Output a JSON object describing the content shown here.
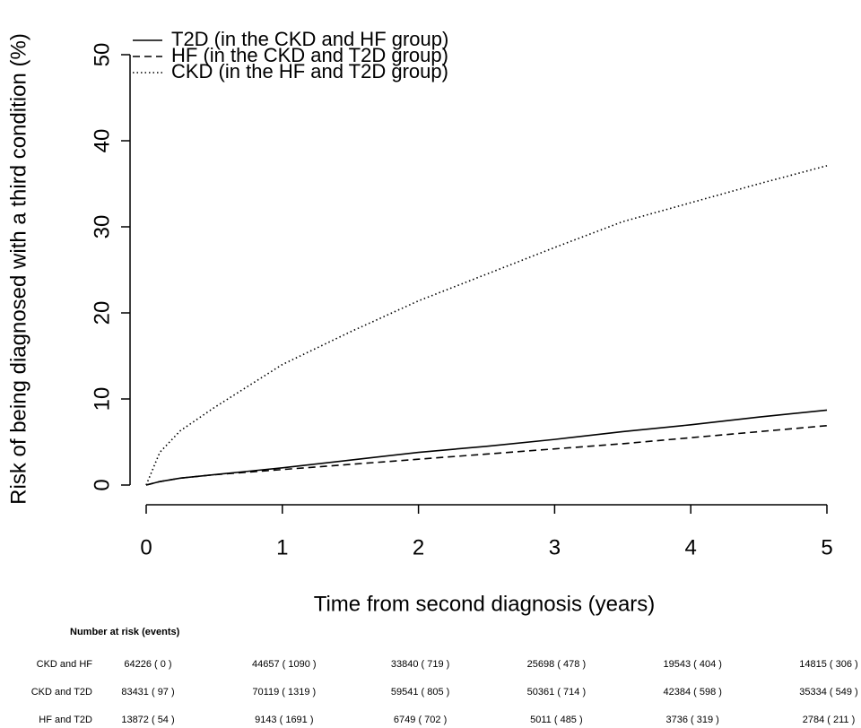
{
  "chart_data": {
    "type": "line",
    "xlabel": "Time from second diagnosis (years)",
    "ylabel": "Risk of being diagnosed with a third condition (%)",
    "x": [
      0,
      0.1,
      0.25,
      0.5,
      0.75,
      1,
      1.5,
      2,
      2.5,
      3,
      3.5,
      4,
      4.5,
      5
    ],
    "series": [
      {
        "name": "T2D (in the CKD and HF group)",
        "color": "#000000",
        "linestyle": "solid",
        "values": [
          0,
          0.4,
          0.8,
          1.2,
          1.6,
          2.0,
          2.9,
          3.8,
          4.5,
          5.3,
          6.2,
          7.0,
          7.9,
          8.7
        ]
      },
      {
        "name": "HF (in the CKD and T2D group)",
        "color": "#000000",
        "linestyle": "dashed",
        "values": [
          0,
          0.4,
          0.8,
          1.2,
          1.5,
          1.8,
          2.4,
          3.0,
          3.6,
          4.2,
          4.8,
          5.5,
          6.2,
          6.9
        ]
      },
      {
        "name": "CKD (in the HF and T2D group)",
        "color": "#000000",
        "linestyle": "dotted",
        "values": [
          0,
          3.8,
          6.3,
          9.0,
          11.5,
          14.0,
          17.8,
          21.4,
          24.5,
          27.6,
          30.6,
          32.8,
          35.0,
          37.1
        ]
      }
    ],
    "xlim": [
      0,
      5
    ],
    "xticks": [
      0,
      1,
      2,
      3,
      4,
      5
    ],
    "ylim": [
      0,
      50
    ],
    "yticks": [
      0,
      10,
      20,
      30,
      40,
      50
    ],
    "grid": false,
    "legend": "top-left"
  },
  "risk_table": {
    "title": "Number at risk (events)",
    "rows": [
      {
        "label": "CKD and HF",
        "cells": [
          "64226  ( 0 )",
          "44657  ( 1090 )",
          "33840  ( 719 )",
          "25698  ( 478 )",
          "19543  ( 404 )",
          "14815  ( 306 )"
        ]
      },
      {
        "label": "CKD and T2D",
        "cells": [
          "83431  ( 97 )",
          "70119  ( 1319 )",
          "59541  ( 805 )",
          "50361  ( 714 )",
          "42384  ( 598 )",
          "35334  ( 549 )"
        ]
      },
      {
        "label": "HF and T2D",
        "cells": [
          "13872  ( 54 )",
          "9143  ( 1691 )",
          "6749  ( 702 )",
          "5011  ( 485 )",
          "3736  ( 319 )",
          "2784  ( 211 )"
        ]
      }
    ]
  }
}
